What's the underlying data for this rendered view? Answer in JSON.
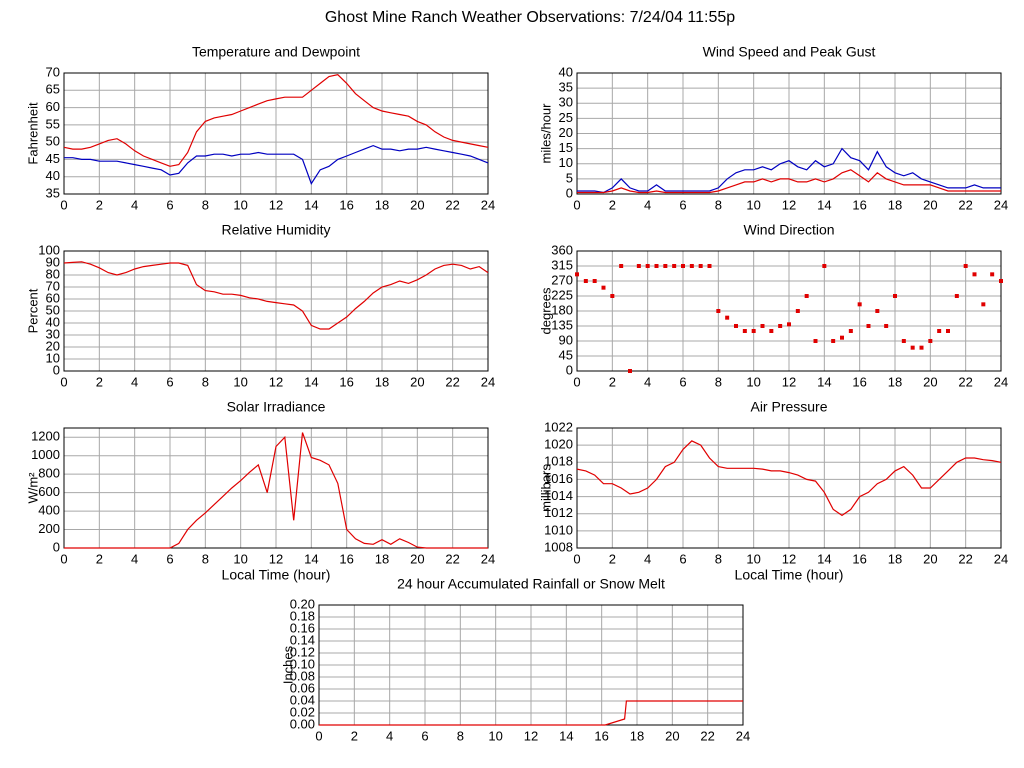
{
  "title": "Ghost Mine Ranch Weather Observations: 7/24/04 11:55p",
  "chart_data": [
    {
      "type": "line",
      "title": "Temperature and Dewpoint",
      "ylabel": "Fahrenheit",
      "x": [
        0,
        0.5,
        1,
        1.5,
        2,
        2.5,
        3,
        3.5,
        4,
        4.5,
        5,
        5.5,
        6,
        6.5,
        7,
        7.5,
        8,
        8.5,
        9,
        9.5,
        10,
        10.5,
        11,
        11.5,
        12,
        12.5,
        13,
        13.5,
        14,
        14.5,
        15,
        15.5,
        16,
        16.5,
        17,
        17.5,
        18,
        18.5,
        19,
        19.5,
        20,
        20.5,
        21,
        21.5,
        22,
        22.5,
        23,
        23.5,
        24
      ],
      "series": [
        {
          "color": "#e00000",
          "values": [
            48.5,
            48,
            48,
            48.5,
            49.5,
            50.5,
            51,
            49.5,
            47.5,
            46,
            45,
            44,
            43,
            43.5,
            47,
            53,
            56,
            57,
            57.5,
            58,
            59,
            60,
            61,
            62,
            62.5,
            63,
            63,
            63,
            65,
            67,
            69,
            69.5,
            67,
            64,
            62,
            60,
            59,
            58.5,
            58,
            57.5,
            56,
            55,
            53,
            51.5,
            50.5,
            50,
            49.5,
            49,
            48.5
          ]
        },
        {
          "color": "#0000c0",
          "values": [
            45.5,
            45.5,
            45,
            45,
            44.5,
            44.5,
            44.5,
            44,
            43.5,
            43,
            42.5,
            42,
            40.5,
            41,
            44,
            46,
            46,
            46.5,
            46.5,
            46,
            46.5,
            46.5,
            47,
            46.5,
            46.5,
            46.5,
            46.5,
            45,
            38,
            42,
            43,
            45,
            46,
            47,
            48,
            49,
            48,
            48,
            47.5,
            48,
            48,
            48.5,
            48,
            47.5,
            47,
            46.5,
            46,
            45,
            44
          ]
        }
      ],
      "xlim": [
        0,
        24
      ],
      "xticks": [
        0,
        2,
        4,
        6,
        8,
        10,
        12,
        14,
        16,
        18,
        20,
        22,
        24
      ],
      "ylim": [
        35,
        70
      ],
      "yticks": [
        35,
        40,
        45,
        50,
        55,
        60,
        65,
        70
      ]
    },
    {
      "type": "line",
      "title": "Wind Speed and Peak Gust",
      "ylabel": "miles/hour",
      "x": [
        0,
        0.5,
        1,
        1.5,
        2,
        2.5,
        3,
        3.5,
        4,
        4.5,
        5,
        5.5,
        6,
        6.5,
        7,
        7.5,
        8,
        8.5,
        9,
        9.5,
        10,
        10.5,
        11,
        11.5,
        12,
        12.5,
        13,
        13.5,
        14,
        14.5,
        15,
        15.5,
        16,
        16.5,
        17,
        17.5,
        18,
        18.5,
        19,
        19.5,
        20,
        20.5,
        21,
        21.5,
        22,
        22.5,
        23,
        23.5,
        24
      ],
      "series": [
        {
          "color": "#0000c0",
          "values": [
            1,
            1,
            1,
            0.5,
            2,
            5,
            2,
            1,
            1,
            3,
            1,
            1,
            1,
            1,
            1,
            1,
            2,
            5,
            7,
            8,
            8,
            9,
            8,
            10,
            11,
            9,
            8,
            11,
            9,
            10,
            15,
            12,
            11,
            8,
            14,
            9,
            7,
            6,
            7,
            5,
            4,
            3,
            2,
            2,
            2,
            3,
            2,
            2,
            2
          ]
        },
        {
          "color": "#e00000",
          "values": [
            0.5,
            0.5,
            0.5,
            0.5,
            1,
            2,
            1,
            0.5,
            0.5,
            1,
            0.5,
            0.5,
            0.5,
            0.5,
            0.5,
            0.5,
            1,
            2,
            3,
            4,
            4,
            5,
            4,
            5,
            5,
            4,
            4,
            5,
            4,
            5,
            7,
            8,
            6,
            4,
            7,
            5,
            4,
            3,
            3,
            3,
            3,
            2,
            1,
            1,
            1,
            1,
            1,
            1,
            1
          ]
        }
      ],
      "xlim": [
        0,
        24
      ],
      "xticks": [
        0,
        2,
        4,
        6,
        8,
        10,
        12,
        14,
        16,
        18,
        20,
        22,
        24
      ],
      "ylim": [
        0,
        40
      ],
      "yticks": [
        0,
        5,
        10,
        15,
        20,
        25,
        30,
        35,
        40
      ]
    },
    {
      "type": "line",
      "title": "Relative Humidity",
      "ylabel": "Percent",
      "x": [
        0,
        0.5,
        1,
        1.5,
        2,
        2.5,
        3,
        3.5,
        4,
        4.5,
        5,
        5.5,
        6,
        6.5,
        7,
        7.5,
        8,
        8.5,
        9,
        9.5,
        10,
        10.5,
        11,
        11.5,
        12,
        12.5,
        13,
        13.5,
        14,
        14.5,
        15,
        15.5,
        16,
        16.5,
        17,
        17.5,
        18,
        18.5,
        19,
        19.5,
        20,
        20.5,
        21,
        21.5,
        22,
        22.5,
        23,
        23.5,
        24
      ],
      "series": [
        {
          "color": "#e00000",
          "values": [
            90,
            90.5,
            91,
            89,
            86,
            82,
            80,
            82,
            85,
            87,
            88,
            89,
            90,
            90,
            88,
            72,
            67,
            66,
            64,
            64,
            63,
            61,
            60,
            58,
            57,
            56,
            55,
            50,
            38,
            35,
            35,
            40,
            45,
            52,
            58,
            65,
            70,
            72,
            75,
            73,
            76,
            80,
            85,
            88,
            89,
            88,
            85,
            87,
            82
          ]
        }
      ],
      "xlim": [
        0,
        24
      ],
      "xticks": [
        0,
        2,
        4,
        6,
        8,
        10,
        12,
        14,
        16,
        18,
        20,
        22,
        24
      ],
      "ylim": [
        0,
        100
      ],
      "yticks": [
        0,
        10,
        20,
        30,
        40,
        50,
        60,
        70,
        80,
        90,
        100
      ]
    },
    {
      "type": "scatter",
      "title": "Wind Direction",
      "ylabel": "degrees",
      "x": [
        0,
        0.5,
        1,
        1.5,
        2,
        2.5,
        3,
        3.5,
        4,
        4.5,
        5,
        5.5,
        6,
        6.5,
        7,
        7.5,
        8,
        8.5,
        9,
        9.5,
        10,
        10.5,
        11,
        11.5,
        12,
        12.5,
        13,
        13.5,
        14,
        14.5,
        15,
        15.5,
        16,
        16.5,
        17,
        17.5,
        18,
        18.5,
        19,
        19.5,
        20,
        20.5,
        21,
        21.5,
        22,
        22.5,
        23,
        23.5,
        24
      ],
      "series": [
        {
          "color": "#e00000",
          "values": [
            290,
            270,
            270,
            250,
            225,
            315,
            0,
            315,
            315,
            315,
            315,
            315,
            315,
            315,
            315,
            315,
            180,
            160,
            135,
            120,
            120,
            135,
            120,
            135,
            140,
            180,
            225,
            90,
            315,
            90,
            100,
            120,
            200,
            135,
            180,
            135,
            225,
            90,
            70,
            70,
            90,
            120,
            120,
            225,
            315,
            290,
            200,
            290,
            270
          ]
        }
      ],
      "xlim": [
        0,
        24
      ],
      "xticks": [
        0,
        2,
        4,
        6,
        8,
        10,
        12,
        14,
        16,
        18,
        20,
        22,
        24
      ],
      "ylim": [
        0,
        360
      ],
      "yticks": [
        0,
        45,
        90,
        135,
        180,
        225,
        270,
        315,
        360
      ]
    },
    {
      "type": "line",
      "title": "Solar Irradiance",
      "ylabel": "W/m²",
      "xlabel": "Local Time (hour)",
      "x": [
        0,
        0.5,
        1,
        1.5,
        2,
        2.5,
        3,
        3.5,
        4,
        4.5,
        5,
        5.5,
        6,
        6.5,
        7,
        7.5,
        8,
        8.5,
        9,
        9.5,
        10,
        10.5,
        11,
        11.5,
        12,
        12.5,
        13,
        13.5,
        14,
        14.5,
        15,
        15.5,
        16,
        16.5,
        17,
        17.5,
        18,
        18.5,
        19,
        19.5,
        20,
        20.5,
        21,
        21.5,
        22,
        22.5,
        23,
        23.5,
        24
      ],
      "series": [
        {
          "color": "#e00000",
          "values": [
            0,
            0,
            0,
            0,
            0,
            0,
            0,
            0,
            0,
            0,
            0,
            0,
            0,
            50,
            200,
            300,
            380,
            470,
            560,
            650,
            730,
            820,
            900,
            600,
            1100,
            1200,
            300,
            1250,
            980,
            950,
            900,
            700,
            200,
            100,
            50,
            40,
            90,
            40,
            100,
            60,
            10,
            0,
            0,
            0,
            0,
            0,
            0,
            0,
            0
          ]
        }
      ],
      "xlim": [
        0,
        24
      ],
      "xticks": [
        0,
        2,
        4,
        6,
        8,
        10,
        12,
        14,
        16,
        18,
        20,
        22,
        24
      ],
      "ylim": [
        0,
        1300
      ],
      "yticks": [
        0,
        200,
        400,
        600,
        800,
        1000,
        1200
      ]
    },
    {
      "type": "line",
      "title": "Air Pressure",
      "ylabel": "millibars",
      "xlabel": "Local Time (hour)",
      "x": [
        0,
        0.5,
        1,
        1.5,
        2,
        2.5,
        3,
        3.5,
        4,
        4.5,
        5,
        5.5,
        6,
        6.5,
        7,
        7.5,
        8,
        8.5,
        9,
        9.5,
        10,
        10.5,
        11,
        11.5,
        12,
        12.5,
        13,
        13.5,
        14,
        14.5,
        15,
        15.5,
        16,
        16.5,
        17,
        17.5,
        18,
        18.5,
        19,
        19.5,
        20,
        20.5,
        21,
        21.5,
        22,
        22.5,
        23,
        23.5,
        24
      ],
      "series": [
        {
          "color": "#e00000",
          "values": [
            1017.2,
            1017,
            1016.5,
            1015.5,
            1015.5,
            1015,
            1014.3,
            1014.5,
            1015,
            1016,
            1017.5,
            1018,
            1019.5,
            1020.5,
            1020,
            1018.5,
            1017.5,
            1017.3,
            1017.3,
            1017.3,
            1017.3,
            1017.2,
            1017,
            1017,
            1016.8,
            1016.5,
            1016,
            1015.8,
            1014.5,
            1012.5,
            1011.8,
            1012.5,
            1014,
            1014.5,
            1015.5,
            1016,
            1017,
            1017.5,
            1016.5,
            1015,
            1015,
            1016,
            1017,
            1018,
            1018.5,
            1018.5,
            1018.3,
            1018.2,
            1018
          ]
        }
      ],
      "xlim": [
        0,
        24
      ],
      "xticks": [
        0,
        2,
        4,
        6,
        8,
        10,
        12,
        14,
        16,
        18,
        20,
        22,
        24
      ],
      "ylim": [
        1008,
        1022
      ],
      "yticks": [
        1008,
        1010,
        1012,
        1014,
        1016,
        1018,
        1020,
        1022
      ]
    },
    {
      "type": "line",
      "title": "24 hour Accumulated Rainfall or Snow Melt",
      "ylabel": "Inches",
      "x": [
        0,
        16.2,
        17.3,
        17.4,
        24
      ],
      "series": [
        {
          "color": "#e00000",
          "values": [
            0,
            0,
            0.01,
            0.04,
            0.04
          ]
        }
      ],
      "xlim": [
        0,
        24
      ],
      "xticks": [
        0,
        2,
        4,
        6,
        8,
        10,
        12,
        14,
        16,
        18,
        20,
        22,
        24
      ],
      "ylim": [
        0,
        0.2
      ],
      "yticks": [
        {
          "value": 0,
          "label": "0.00"
        },
        {
          "value": 0.02,
          "label": "0.02"
        },
        {
          "value": 0.04,
          "label": "0.04"
        },
        {
          "value": 0.06,
          "label": "0.06"
        },
        {
          "value": 0.08,
          "label": "0.08"
        },
        {
          "value": 0.1,
          "label": "0.10"
        },
        {
          "value": 0.12,
          "label": "0.12"
        },
        {
          "value": 0.14,
          "label": "0.14"
        },
        {
          "value": 0.16,
          "label": "0.16"
        },
        {
          "value": 0.18,
          "label": "0.18"
        },
        {
          "value": 0.2,
          "label": "0.20"
        }
      ]
    }
  ]
}
